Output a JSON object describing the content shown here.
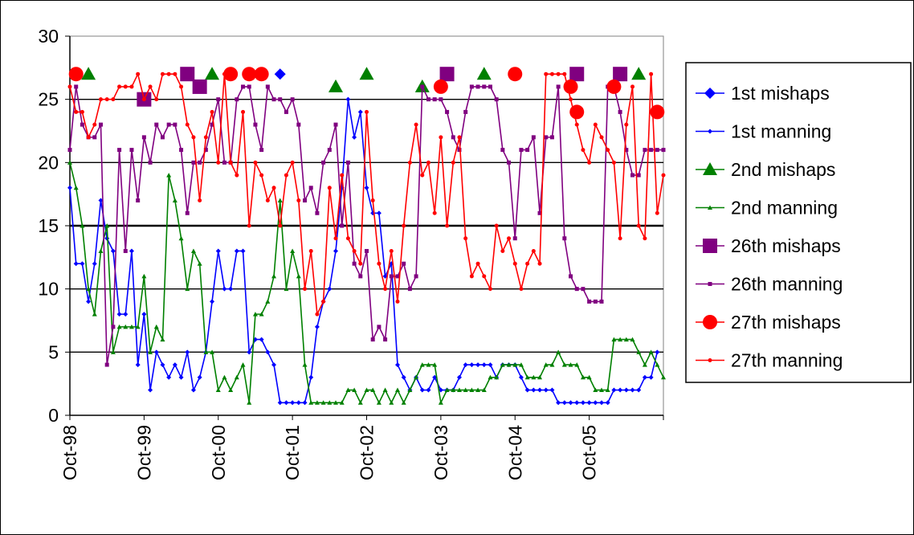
{
  "chart_data": {
    "type": "line",
    "title": "",
    "xlabel": "",
    "ylabel": "",
    "ylim": [
      0,
      30
    ],
    "yticks": [
      "0",
      "5",
      "10",
      "15",
      "20",
      "25",
      "30"
    ],
    "x_tick_labels": [
      "Oct-98",
      "Oct-99",
      "Oct-00",
      "Oct-01",
      "Oct-02",
      "Oct-03",
      "Oct-04",
      "Oct-05"
    ],
    "x_unit": "month index from Oct-98",
    "xlim": [
      0,
      96
    ],
    "grid": "horizontal",
    "legend_position": "right",
    "series": [
      {
        "name": "1st mishaps",
        "marker": "diamond",
        "color": "#0000FF",
        "line": false,
        "points": [
          [
            34,
            27
          ]
        ]
      },
      {
        "name": "1st manning",
        "marker": "small-diamond",
        "color": "#0000FF",
        "line": true,
        "values": [
          18,
          12,
          12,
          9,
          12,
          17,
          14,
          13,
          8,
          8,
          13,
          4,
          8,
          2,
          5,
          4,
          3,
          4,
          3,
          5,
          2,
          3,
          5,
          9,
          13,
          10,
          10,
          13,
          13,
          5,
          6,
          6,
          5,
          4,
          1,
          1,
          1,
          1,
          1,
          3,
          7,
          9,
          10,
          13,
          18,
          25,
          22,
          24,
          18,
          16,
          16,
          11,
          12,
          4,
          3,
          2,
          3,
          2,
          2,
          3,
          2,
          2,
          2,
          3,
          4,
          4,
          4,
          4,
          4,
          3,
          4,
          4,
          4,
          3,
          2,
          2,
          2,
          2,
          2,
          1,
          1,
          1,
          1,
          1,
          1,
          1,
          1,
          1,
          2,
          2,
          2,
          2,
          2,
          3,
          3,
          5
        ]
      },
      {
        "name": "2nd mishaps",
        "marker": "triangle",
        "color": "#008000",
        "line": false,
        "points": [
          [
            3,
            27
          ],
          [
            23,
            27
          ],
          [
            43,
            26
          ],
          [
            48,
            27
          ],
          [
            57,
            26
          ],
          [
            67,
            27
          ],
          [
            92,
            27
          ]
        ]
      },
      {
        "name": "2nd manning",
        "marker": "small-triangle",
        "color": "#008000",
        "line": true,
        "values": [
          20,
          18,
          15,
          10,
          8,
          13,
          15,
          5,
          7,
          7,
          7,
          7,
          11,
          5,
          7,
          6,
          19,
          17,
          14,
          10,
          13,
          12,
          5,
          5,
          2,
          3,
          2,
          3,
          4,
          1,
          8,
          8,
          9,
          11,
          17,
          10,
          13,
          11,
          4,
          1,
          1,
          1,
          1,
          1,
          1,
          2,
          2,
          1,
          2,
          2,
          1,
          2,
          1,
          2,
          1,
          2,
          3,
          4,
          4,
          4,
          1,
          2,
          2,
          2,
          2,
          2,
          2,
          2,
          3,
          3,
          4,
          4,
          4,
          4,
          3,
          3,
          3,
          4,
          4,
          5,
          4,
          4,
          4,
          3,
          3,
          2,
          2,
          2,
          6,
          6,
          6,
          6,
          5,
          4,
          5,
          4,
          3
        ]
      },
      {
        "name": "26th mishaps",
        "marker": "square",
        "color": "#800080",
        "line": false,
        "points": [
          [
            12,
            25
          ],
          [
            19,
            27
          ],
          [
            21,
            26
          ],
          [
            61,
            27
          ],
          [
            82,
            27
          ],
          [
            89,
            27
          ]
        ]
      },
      {
        "name": "26th manning",
        "marker": "small-square",
        "color": "#800080",
        "line": true,
        "values": [
          21,
          26,
          23,
          22,
          22,
          23,
          4,
          7,
          21,
          13,
          21,
          17,
          22,
          20,
          23,
          22,
          23,
          23,
          21,
          16,
          20,
          20,
          21,
          23,
          25,
          20,
          20,
          25,
          26,
          26,
          23,
          21,
          26,
          25,
          25,
          24,
          25,
          23,
          17,
          18,
          16,
          20,
          21,
          23,
          15,
          20,
          12,
          11,
          13,
          6,
          7,
          6,
          11,
          11,
          12,
          10,
          11,
          26,
          25,
          25,
          25,
          24,
          22,
          21,
          24,
          26,
          26,
          26,
          26,
          25,
          21,
          20,
          14,
          21,
          21,
          22,
          16,
          22,
          22,
          26,
          14,
          11,
          10,
          10,
          9,
          9,
          9,
          26,
          26,
          24,
          21,
          19,
          19,
          21,
          21,
          21,
          21
        ]
      },
      {
        "name": "27th mishaps",
        "marker": "circle",
        "color": "#FF0000",
        "line": false,
        "points": [
          [
            1,
            27
          ],
          [
            26,
            27
          ],
          [
            29,
            27
          ],
          [
            31,
            27
          ],
          [
            60,
            26
          ],
          [
            72,
            27
          ],
          [
            81,
            26
          ],
          [
            82,
            24
          ],
          [
            88,
            26
          ],
          [
            95,
            24
          ]
        ]
      },
      {
        "name": "27th manning",
        "marker": "small-circle",
        "color": "#FF0000",
        "line": true,
        "values": [
          26,
          24,
          24,
          22,
          23,
          25,
          25,
          25,
          26,
          26,
          26,
          27,
          25,
          26,
          25,
          27,
          27,
          27,
          26,
          23,
          22,
          17,
          22,
          24,
          20,
          27,
          20,
          19,
          24,
          15,
          20,
          19,
          17,
          18,
          15,
          19,
          20,
          17,
          10,
          13,
          8,
          9,
          18,
          14,
          19,
          14,
          13,
          12,
          24,
          17,
          12,
          10,
          13,
          9,
          15,
          20,
          23,
          19,
          20,
          16,
          22,
          15,
          20,
          22,
          14,
          11,
          12,
          11,
          10,
          15,
          13,
          14,
          12,
          10,
          12,
          13,
          12,
          27,
          27,
          27,
          27,
          25,
          23,
          21,
          20,
          23,
          22,
          21,
          20,
          14,
          23,
          26,
          15,
          14,
          27,
          16,
          19
        ]
      }
    ]
  },
  "legend": {
    "items": [
      {
        "label": "1st mishaps",
        "marker": "diamond",
        "color": "#0000FF"
      },
      {
        "label": "1st manning",
        "marker": "small-diamond",
        "color": "#0000FF"
      },
      {
        "label": "2nd mishaps",
        "marker": "triangle",
        "color": "#008000"
      },
      {
        "label": "2nd manning",
        "marker": "small-triangle",
        "color": "#008000"
      },
      {
        "label": "26th mishaps",
        "marker": "square",
        "color": "#800080"
      },
      {
        "label": "26th manning",
        "marker": "small-square",
        "color": "#800080"
      },
      {
        "label": "27th mishaps",
        "marker": "circle",
        "color": "#FF0000"
      },
      {
        "label": "27th manning",
        "marker": "small-circle",
        "color": "#FF0000"
      }
    ]
  }
}
